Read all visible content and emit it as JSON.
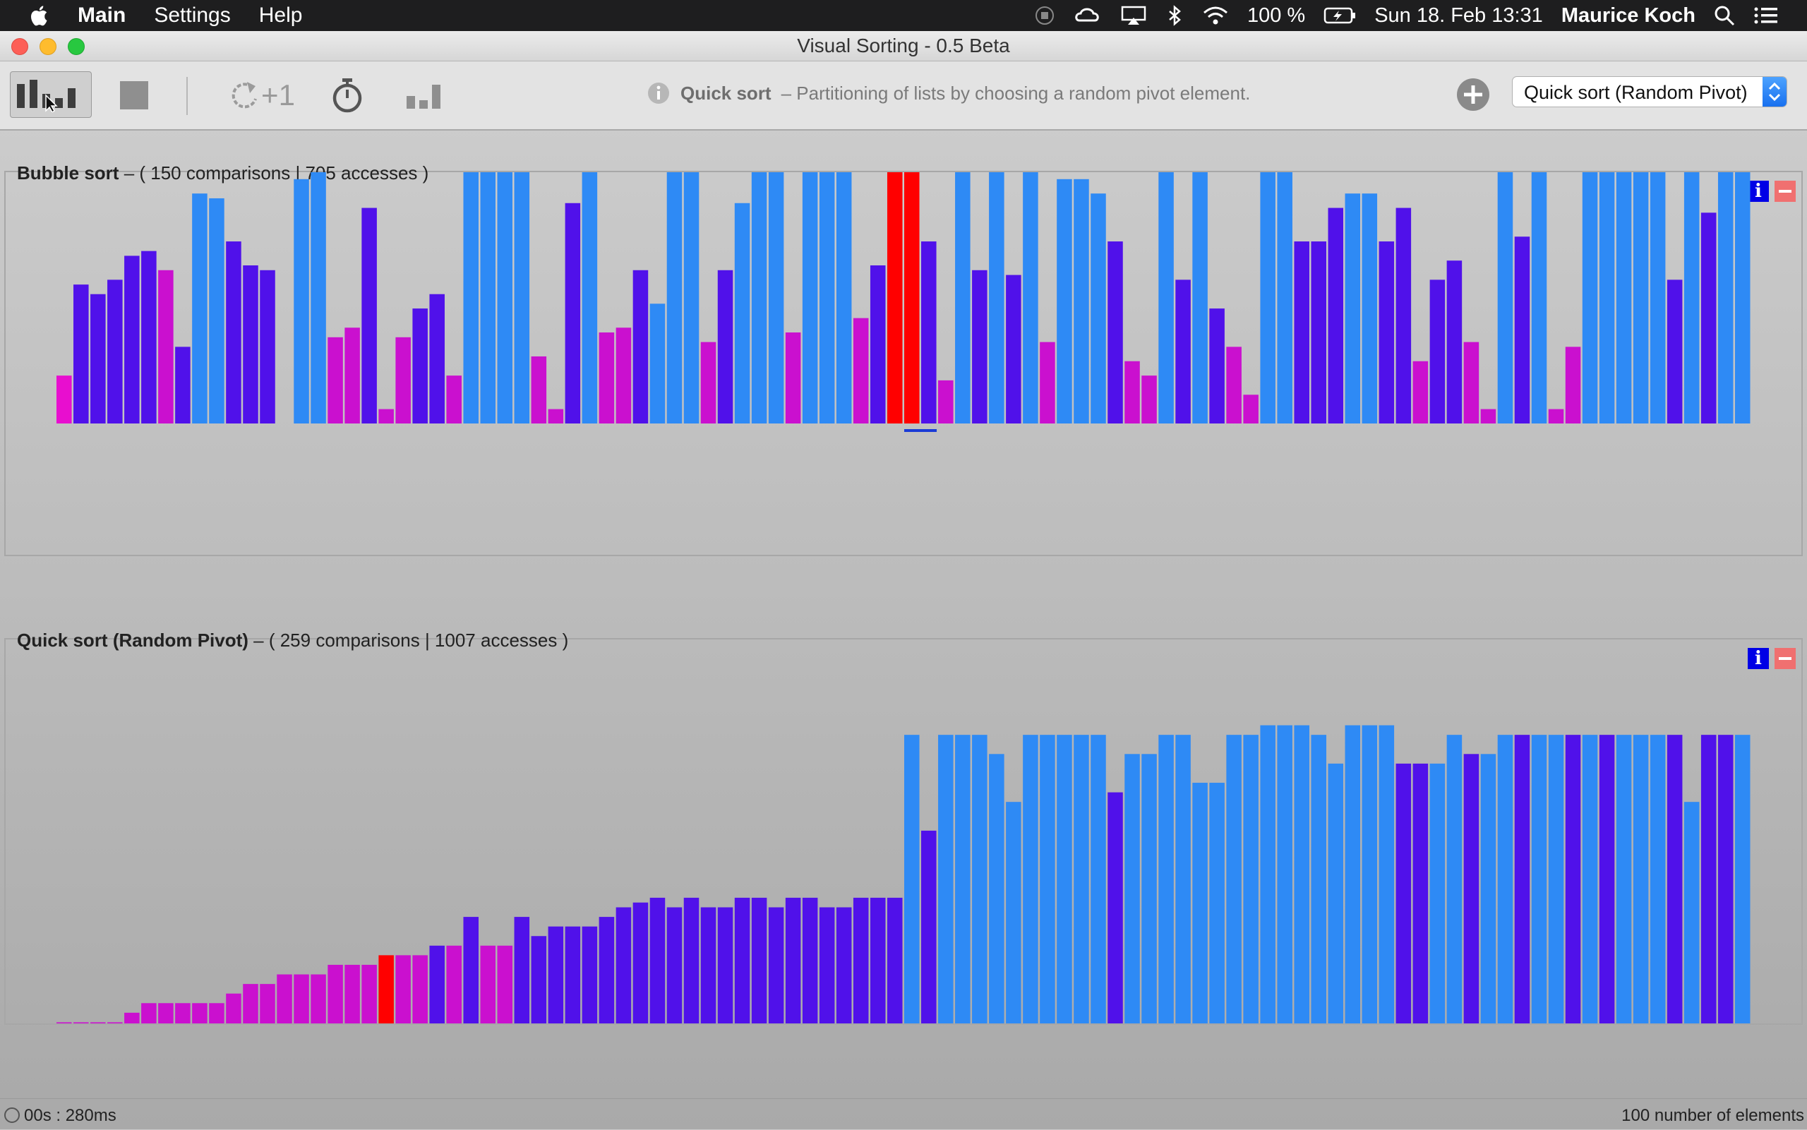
{
  "menubar": {
    "app_name": "Main",
    "items": [
      "Settings",
      "Help"
    ],
    "battery": "100 %",
    "datetime": "Sun 18. Feb  13:31",
    "user": "Maurice Koch"
  },
  "window": {
    "title": "Visual Sorting - 0.5 Beta"
  },
  "toolbar": {
    "step_label": "+1",
    "description_algo": "Quick sort",
    "description_text": "– Partitioning of lists by choosing a random pivot element.",
    "algorithm_select_value": "Quick sort (Random Pivot)"
  },
  "panels": [
    {
      "name": "Bubble sort",
      "stats": "– ( 150 comparisons | 705 accesses )",
      "chart_data": {
        "type": "bar",
        "values": [
          10,
          29,
          27,
          30,
          35,
          36,
          32,
          16,
          48,
          47,
          38,
          33,
          32,
          0,
          51,
          60,
          18,
          20,
          45,
          3,
          18,
          24,
          27,
          10,
          64,
          58,
          64,
          64,
          14,
          3,
          46,
          57,
          19,
          20,
          32,
          25,
          53,
          57,
          17,
          32,
          46,
          59,
          64,
          19,
          54,
          57,
          64,
          22,
          33,
          65,
          66,
          38,
          9,
          58,
          32,
          65,
          31,
          58,
          17,
          51,
          51,
          48,
          38,
          13,
          10,
          66,
          30,
          66,
          24,
          16,
          6,
          53,
          66,
          38,
          38,
          45,
          48,
          48,
          38,
          45,
          13,
          30,
          34,
          17,
          3,
          57,
          39,
          55,
          3,
          16,
          62,
          66,
          56,
          61,
          62,
          30,
          63,
          44,
          63,
          66
        ],
        "colors": [
          "#e80ecf",
          "#5011ea",
          "#5011ea",
          "#5011ea",
          "#5011ea",
          "#5011ea",
          "#ca10cf",
          "#5011ea",
          "#2e8af5",
          "#2e8af5",
          "#5011ea",
          "#5011ea",
          "#5011ea",
          "#c0c0c0",
          "#2e8af5",
          "#2e8af5",
          "#ca10cf",
          "#ca10cf",
          "#5011ea",
          "#ca10cf",
          "#ca10cf",
          "#5011ea",
          "#5011ea",
          "#ca10cf",
          "#2e8af5",
          "#2e8af5",
          "#2e8af5",
          "#2e8af5",
          "#ca10cf",
          "#ca10cf",
          "#5011ea",
          "#2e8af5",
          "#ca10cf",
          "#ca10cf",
          "#5011ea",
          "#2e8af5",
          "#2e8af5",
          "#2e8af5",
          "#ca10cf",
          "#5011ea",
          "#2e8af5",
          "#2e8af5",
          "#2e8af5",
          "#ca10cf",
          "#2e8af5",
          "#2e8af5",
          "#2e8af5",
          "#ca10cf",
          "#5011ea",
          "#ff0000",
          "#ff0000",
          "#5011ea",
          "#ca10cf",
          "#2e8af5",
          "#5011ea",
          "#2e8af5",
          "#5011ea",
          "#2e8af5",
          "#ca10cf",
          "#2e8af5",
          "#2e8af5",
          "#2e8af5",
          "#5011ea",
          "#ca10cf",
          "#ca10cf",
          "#2e8af5",
          "#5011ea",
          "#2e8af5",
          "#5011ea",
          "#ca10cf",
          "#ca10cf",
          "#2e8af5",
          "#2e8af5",
          "#5011ea",
          "#5011ea",
          "#5011ea",
          "#2e8af5",
          "#2e8af5",
          "#5011ea",
          "#5011ea",
          "#ca10cf",
          "#5011ea",
          "#5011ea",
          "#ca10cf",
          "#ca10cf",
          "#2e8af5",
          "#5011ea",
          "#2e8af5",
          "#ca10cf",
          "#ca10cf",
          "#2e8af5",
          "#2e8af5",
          "#2e8af5",
          "#2e8af5",
          "#2e8af5",
          "#5011ea",
          "#2e8af5",
          "#5011ea",
          "#2e8af5",
          "#2e8af5"
        ],
        "ylim": [
          0,
          66
        ],
        "pointer_index": 50
      }
    },
    {
      "name": "Quick sort (Random Pivot)",
      "stats": "– ( 259 comparisons | 1007 accesses )",
      "chart_data": {
        "type": "bar",
        "values": [
          2,
          2,
          2,
          2,
          4,
          6,
          6,
          6,
          6,
          6,
          8,
          10,
          10,
          12,
          12,
          12,
          14,
          14,
          14,
          16,
          16,
          16,
          18,
          18,
          24,
          18,
          18,
          24,
          20,
          22,
          22,
          22,
          24,
          26,
          27,
          28,
          26,
          28,
          26,
          26,
          28,
          28,
          26,
          28,
          28,
          26,
          26,
          28,
          28,
          28,
          62,
          42,
          62,
          62,
          62,
          58,
          48,
          62,
          62,
          62,
          62,
          62,
          50,
          58,
          58,
          62,
          62,
          52,
          52,
          62,
          62,
          64,
          64,
          64,
          62,
          56,
          64,
          64,
          64,
          56,
          56,
          56,
          62,
          58,
          58,
          62,
          62,
          62,
          62,
          62,
          62,
          62,
          62,
          62,
          62,
          62,
          48,
          62,
          62,
          62
        ],
        "colors": [
          "#ca10cf",
          "#ca10cf",
          "#ca10cf",
          "#ca10cf",
          "#ca10cf",
          "#ca10cf",
          "#ca10cf",
          "#ca10cf",
          "#ca10cf",
          "#ca10cf",
          "#ca10cf",
          "#ca10cf",
          "#ca10cf",
          "#ca10cf",
          "#ca10cf",
          "#ca10cf",
          "#ca10cf",
          "#ca10cf",
          "#ca10cf",
          "#ff0000",
          "#ca10cf",
          "#ca10cf",
          "#5011ea",
          "#ca10cf",
          "#5011ea",
          "#ca10cf",
          "#ca10cf",
          "#5011ea",
          "#5011ea",
          "#5011ea",
          "#5011ea",
          "#5011ea",
          "#5011ea",
          "#5011ea",
          "#5011ea",
          "#5011ea",
          "#5011ea",
          "#5011ea",
          "#5011ea",
          "#5011ea",
          "#5011ea",
          "#5011ea",
          "#5011ea",
          "#5011ea",
          "#5011ea",
          "#5011ea",
          "#5011ea",
          "#5011ea",
          "#5011ea",
          "#5011ea",
          "#2e8af5",
          "#5011ea",
          "#2e8af5",
          "#2e8af5",
          "#2e8af5",
          "#2e8af5",
          "#2e8af5",
          "#2e8af5",
          "#2e8af5",
          "#2e8af5",
          "#2e8af5",
          "#2e8af5",
          "#5011ea",
          "#2e8af5",
          "#2e8af5",
          "#2e8af5",
          "#2e8af5",
          "#2e8af5",
          "#2e8af5",
          "#2e8af5",
          "#2e8af5",
          "#2e8af5",
          "#2e8af5",
          "#2e8af5",
          "#2e8af5",
          "#2e8af5",
          "#2e8af5",
          "#2e8af5",
          "#2e8af5",
          "#5011ea",
          "#5011ea",
          "#2e8af5",
          "#2e8af5",
          "#5011ea",
          "#2e8af5",
          "#2e8af5",
          "#5011ea",
          "#2e8af5",
          "#2e8af5",
          "#5011ea",
          "#2e8af5",
          "#5011ea",
          "#2e8af5",
          "#2e8af5",
          "#2e8af5",
          "#5011ea",
          "#2e8af5",
          "#5011ea",
          "#5011ea",
          "#2e8af5"
        ],
        "ylim": [
          0,
          66
        ],
        "pointer_index": 19
      }
    }
  ],
  "status": {
    "timer": "00s : 280ms",
    "element_count": "100 number of elements"
  }
}
